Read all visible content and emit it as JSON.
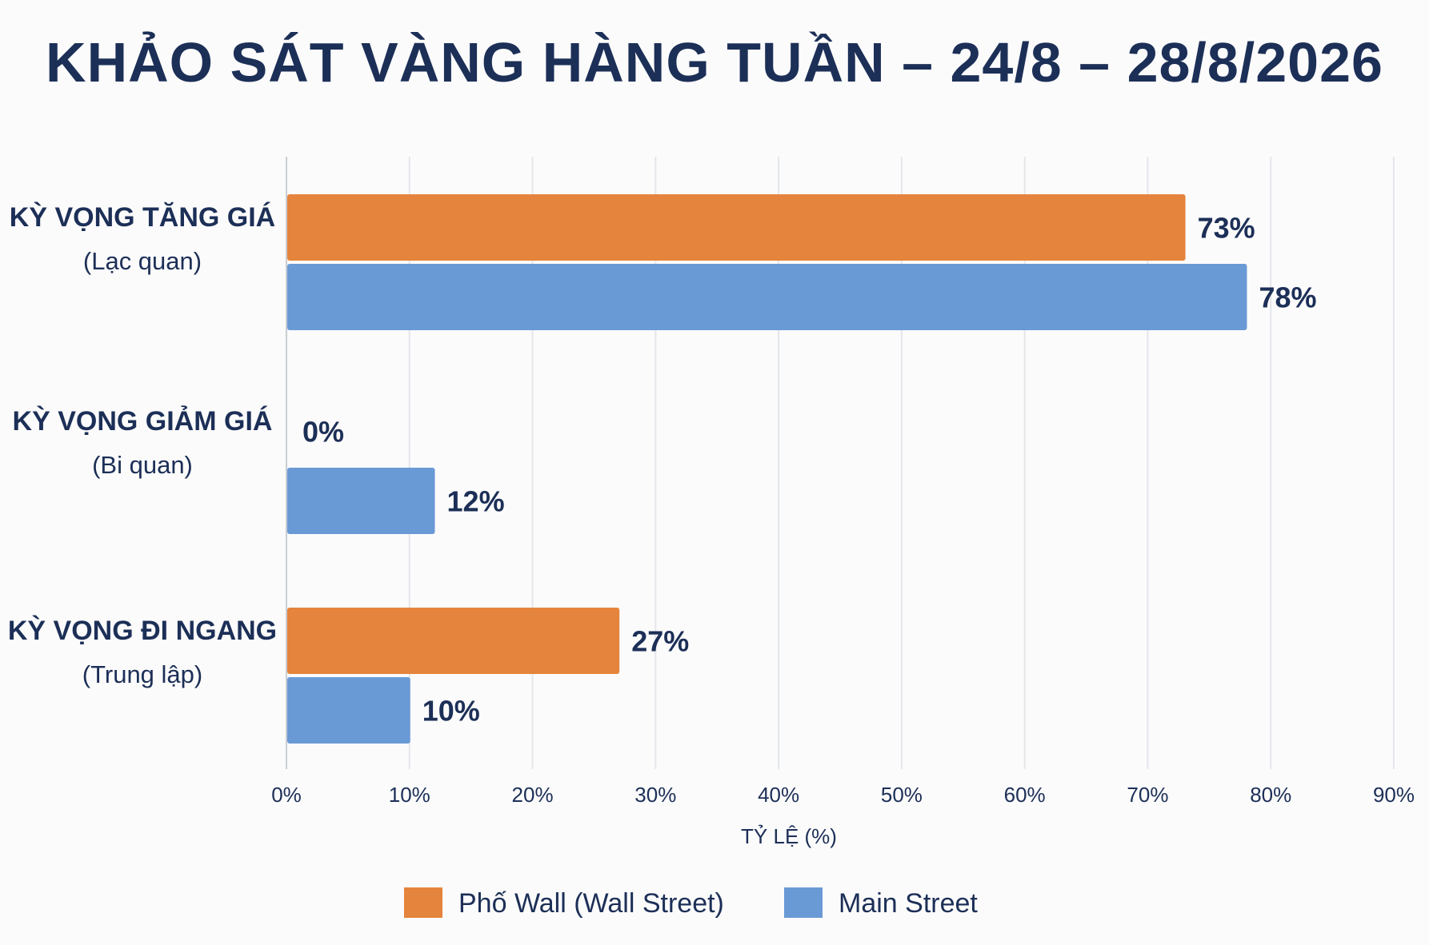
{
  "chart_data": {
    "type": "bar",
    "orientation": "horizontal",
    "title": "KHẢO SÁT VÀNG HÀNG TUẦN – 24/8 – 28/8/2026",
    "categories": [
      {
        "label": "KỲ VỌNG TĂNG GIÁ",
        "sublabel": "(Lạc quan)"
      },
      {
        "label": "KỲ VỌNG GIẢM GIÁ",
        "sublabel": "(Bi quan)"
      },
      {
        "label": "KỲ VỌNG ĐI NGANG",
        "sublabel": "(Trung lập)"
      }
    ],
    "series": [
      {
        "name": "Phố Wall (Wall Street)",
        "color": "#e5843c",
        "values": [
          73,
          0,
          27
        ],
        "value_labels": [
          "73%",
          "0%",
          "27%"
        ]
      },
      {
        "name": "Main Street",
        "color": "#6a9ad6",
        "values": [
          78,
          12,
          10
        ],
        "value_labels": [
          "78%",
          "12%",
          "10%"
        ]
      }
    ],
    "xlabel": "TỶ LỆ (%)",
    "xlim": [
      0,
      90
    ],
    "xticks": [
      "0%",
      "10%",
      "20%",
      "30%",
      "40%",
      "50%",
      "60%",
      "70%",
      "80%",
      "90%"
    ],
    "grid": "vertical",
    "legend": "bottom-center"
  }
}
